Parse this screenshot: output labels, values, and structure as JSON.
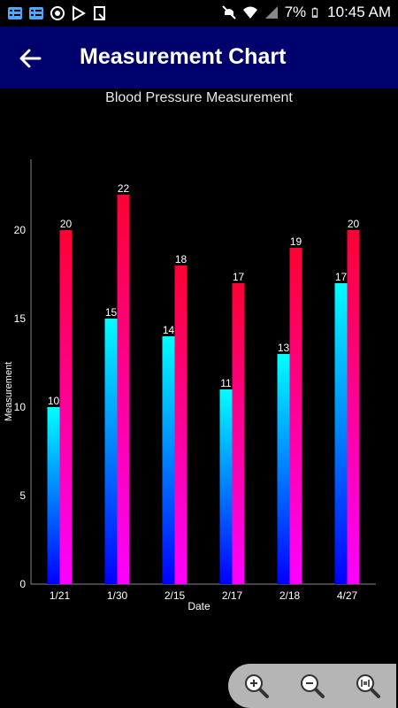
{
  "status_bar": {
    "battery": "7%",
    "time": "10:45 AM",
    "icons": [
      "notification-icon",
      "notification-icon",
      "sync-icon",
      "play-store-icon",
      "screenshot-icon",
      "mute-icon",
      "wifi-icon",
      "signal-icon",
      "battery-icon"
    ]
  },
  "app_bar": {
    "title": "Measurement Chart",
    "back_icon": "arrow-back-icon"
  },
  "chart_title": "Blood Pressure Measurement",
  "colors": {
    "app_bar": "#01016e",
    "series1_top": "#00ffff",
    "series1_bottom": "#0000ff",
    "series2_top": "#ff0033",
    "series2_bottom": "#ff00ff"
  },
  "chart_data": {
    "type": "bar",
    "title": "Blood Pressure Measurement",
    "xlabel": "Date",
    "ylabel": "Measurement",
    "categories": [
      "1/21",
      "1/30",
      "2/15",
      "2/17",
      "2/18",
      "4/27"
    ],
    "series": [
      {
        "values": [
          10,
          15,
          14,
          11,
          13,
          17
        ]
      },
      {
        "values": [
          20,
          22,
          18,
          17,
          19,
          20
        ]
      }
    ],
    "ylim": [
      0,
      25
    ],
    "yticks": [
      0,
      5,
      10,
      15,
      20
    ],
    "grid": false,
    "data_labels": true
  },
  "zoom_controls": [
    "zoom-in-icon",
    "zoom-out-icon",
    "zoom-reset-icon"
  ]
}
